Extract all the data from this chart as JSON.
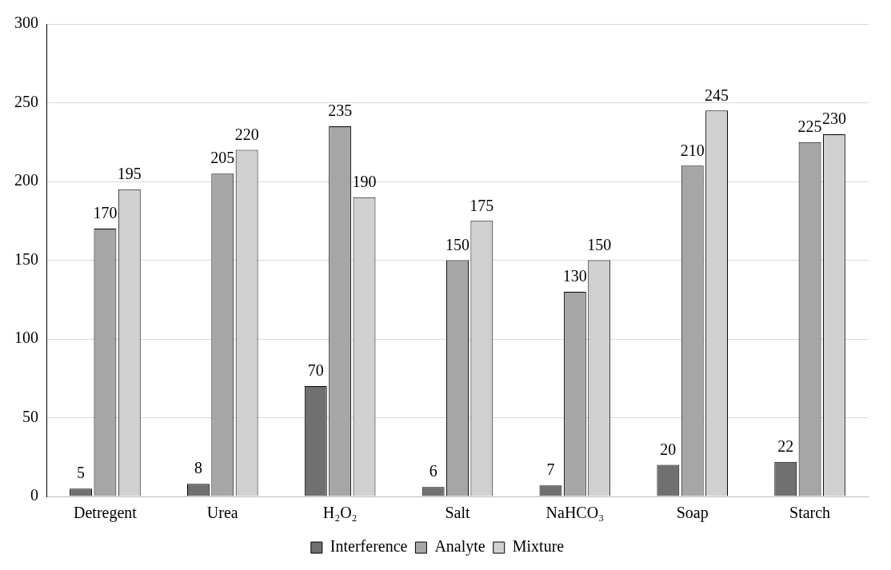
{
  "chart_data": {
    "type": "bar",
    "categories": [
      "Detregent",
      "Urea",
      "H₂O₂",
      "Salt",
      "NaHCO₃",
      "Soap",
      "Starch"
    ],
    "series": [
      {
        "name": "Interference",
        "color": "#707070",
        "values": [
          5,
          8,
          70,
          6,
          7,
          20,
          22
        ]
      },
      {
        "name": "Analyte",
        "color": "#a6a6a6",
        "values": [
          170,
          205,
          235,
          150,
          130,
          210,
          225
        ]
      },
      {
        "name": "Mixture",
        "color": "#d0d0d0",
        "values": [
          195,
          220,
          190,
          175,
          150,
          245,
          230
        ]
      }
    ],
    "ylim": [
      0,
      300
    ],
    "yticks": [
      0,
      50,
      100,
      150,
      200,
      250,
      300
    ],
    "grid": "y",
    "legend": "bottom",
    "data_labels": true
  }
}
